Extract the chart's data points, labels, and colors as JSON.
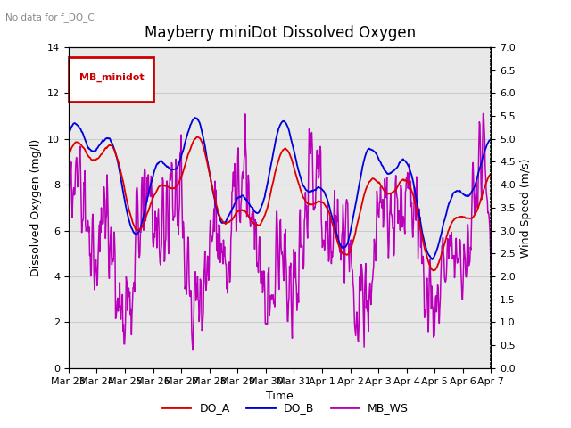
{
  "title": "Mayberry miniDot Dissolved Oxygen",
  "note": "No data for f_DO_C",
  "xlabel": "Time",
  "ylabel_left": "Dissolved Oxygen (mg/l)",
  "ylabel_right": "Wind Speed (m/s)",
  "legend_label": "MB_minidot",
  "series_labels": [
    "DO_A",
    "DO_B",
    "MB_WS"
  ],
  "series_colors": [
    "#dd0000",
    "#0000dd",
    "#bb00bb"
  ],
  "ylim_left": [
    0,
    14
  ],
  "ylim_right": [
    0.0,
    7.0
  ],
  "yticks_left": [
    0,
    2,
    4,
    6,
    8,
    10,
    12,
    14
  ],
  "yticks_right": [
    0.0,
    0.5,
    1.0,
    1.5,
    2.0,
    2.5,
    3.0,
    3.5,
    4.0,
    4.5,
    5.0,
    5.5,
    6.0,
    6.5,
    7.0
  ],
  "xtick_labels": [
    "Mar 23",
    "Mar 24",
    "Mar 25",
    "Mar 26",
    "Mar 27",
    "Mar 28",
    "Mar 29",
    "Mar 30",
    "Mar 31",
    "Apr 1",
    "Apr 2",
    "Apr 3",
    "Apr 4",
    "Apr 5",
    "Apr 6",
    "Apr 7"
  ],
  "grid_color": "#cccccc",
  "background_color": "#ffffff",
  "plot_bg_color": "#e8e8e8",
  "legend_box_color": "#cc0000",
  "legend_box_fill": "#ffffff",
  "title_fontsize": 12,
  "label_fontsize": 9,
  "tick_fontsize": 8,
  "linewidth_do": 1.3,
  "linewidth_ws": 1.1,
  "seed": 99
}
